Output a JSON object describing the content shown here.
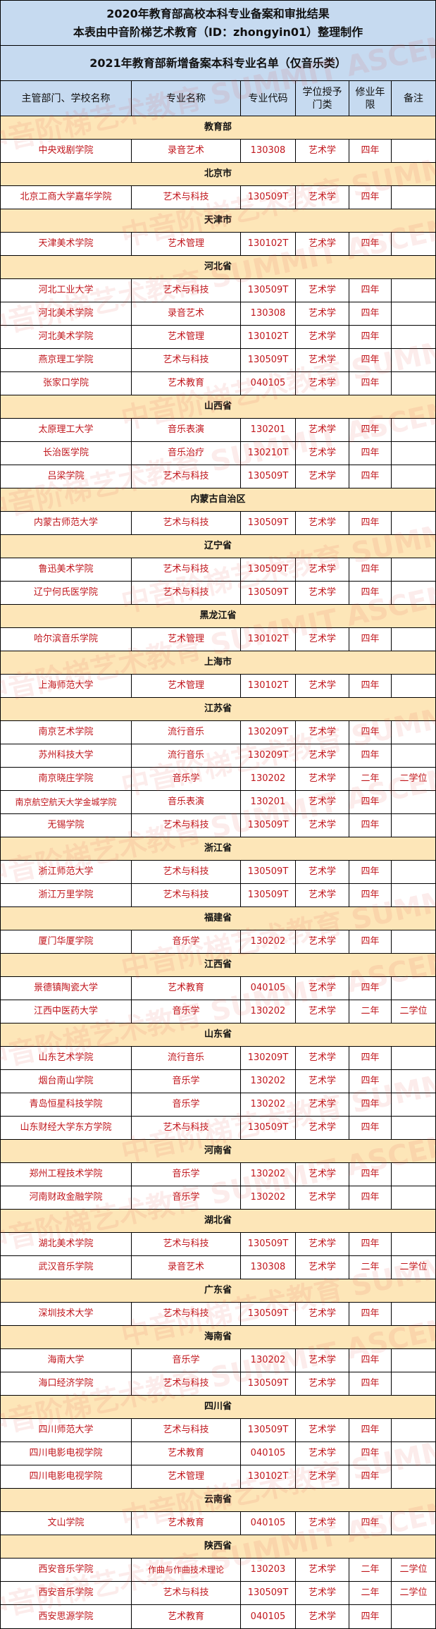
{
  "header": {
    "title_line1": "2020年教育部高校本科专业备案和审批结果",
    "title_line2": "本表由中音阶梯艺术教育（ID：zhongyin01）整理制作",
    "subtitle": "2021年教育部新增备案本科专业名单（仅音乐类）"
  },
  "columns": [
    "主管部门、学校名称",
    "专业名称",
    "专业代码",
    "学位授予门类",
    "修业年限",
    "备注"
  ],
  "watermark": "中音阶梯艺术教育 SUMMIT ASCENT INSTITUTE OF MUSIC",
  "colors": {
    "header_bg": "#c6daf0",
    "province_bg": "#fde6b8",
    "data_text": "#c0161c"
  },
  "groups": [
    {
      "province": "教育部",
      "rows": [
        [
          "中央戏剧学院",
          "录音艺术",
          "130308",
          "艺术学",
          "四年",
          ""
        ]
      ]
    },
    {
      "province": "北京市",
      "rows": [
        [
          "北京工商大学嘉华学院",
          "艺术与科技",
          "130509T",
          "艺术学",
          "四年",
          ""
        ]
      ]
    },
    {
      "province": "天津市",
      "rows": [
        [
          "天津美术学院",
          "艺术管理",
          "130102T",
          "艺术学",
          "四年",
          ""
        ]
      ]
    },
    {
      "province": "河北省",
      "rows": [
        [
          "河北工业大学",
          "艺术与科技",
          "130509T",
          "艺术学",
          "四年",
          ""
        ],
        [
          "河北美术学院",
          "录音艺术",
          "130308",
          "艺术学",
          "四年",
          ""
        ],
        [
          "河北美术学院",
          "艺术管理",
          "130102T",
          "艺术学",
          "四年",
          ""
        ],
        [
          "燕京理工学院",
          "艺术与科技",
          "130509T",
          "艺术学",
          "四年",
          ""
        ],
        [
          "张家口学院",
          "艺术教育",
          "040105",
          "艺术学",
          "四年",
          ""
        ]
      ]
    },
    {
      "province": "山西省",
      "rows": [
        [
          "太原理工大学",
          "音乐表演",
          "130201",
          "艺术学",
          "四年",
          ""
        ],
        [
          "长治医学院",
          "音乐治疗",
          "130210T",
          "艺术学",
          "四年",
          ""
        ],
        [
          "吕梁学院",
          "艺术与科技",
          "130509T",
          "艺术学",
          "四年",
          ""
        ]
      ]
    },
    {
      "province": "内蒙古自治区",
      "rows": [
        [
          "内蒙古师范大学",
          "艺术与科技",
          "130509T",
          "艺术学",
          "四年",
          ""
        ]
      ]
    },
    {
      "province": "辽宁省",
      "rows": [
        [
          "鲁迅美术学院",
          "艺术与科技",
          "130509T",
          "艺术学",
          "四年",
          ""
        ],
        [
          "辽宁何氏医学院",
          "艺术与科技",
          "130509T",
          "艺术学",
          "四年",
          ""
        ]
      ]
    },
    {
      "province": "黑龙江省",
      "rows": [
        [
          "哈尔滨音乐学院",
          "艺术管理",
          "130102T",
          "艺术学",
          "四年",
          ""
        ]
      ]
    },
    {
      "province": "上海市",
      "rows": [
        [
          "上海师范大学",
          "艺术管理",
          "130102T",
          "艺术学",
          "四年",
          ""
        ]
      ]
    },
    {
      "province": "江苏省",
      "rows": [
        [
          "南京艺术学院",
          "流行音乐",
          "130209T",
          "艺术学",
          "四年",
          ""
        ],
        [
          "苏州科技大学",
          "流行音乐",
          "130209T",
          "艺术学",
          "四年",
          ""
        ],
        [
          "南京晓庄学院",
          "音乐学",
          "130202",
          "艺术学",
          "二年",
          "二学位"
        ],
        [
          "南京航空航天大学金城学院",
          "音乐表演",
          "130201",
          "艺术学",
          "四年",
          ""
        ],
        [
          "无锡学院",
          "艺术与科技",
          "130509T",
          "艺术学",
          "四年",
          ""
        ]
      ]
    },
    {
      "province": "浙江省",
      "rows": [
        [
          "浙江师范大学",
          "艺术与科技",
          "130509T",
          "艺术学",
          "四年",
          ""
        ],
        [
          "浙江万里学院",
          "艺术与科技",
          "130509T",
          "艺术学",
          "四年",
          ""
        ]
      ]
    },
    {
      "province": "福建省",
      "rows": [
        [
          "厦门华厦学院",
          "音乐学",
          "130202",
          "艺术学",
          "四年",
          ""
        ]
      ]
    },
    {
      "province": "江西省",
      "rows": [
        [
          "景德镇陶瓷大学",
          "艺术教育",
          "040105",
          "艺术学",
          "四年",
          ""
        ],
        [
          "江西中医药大学",
          "音乐学",
          "130202",
          "艺术学",
          "二年",
          "二学位"
        ]
      ]
    },
    {
      "province": "山东省",
      "rows": [
        [
          "山东艺术学院",
          "流行音乐",
          "130209T",
          "艺术学",
          "四年",
          ""
        ],
        [
          "烟台南山学院",
          "音乐学",
          "130202",
          "艺术学",
          "四年",
          ""
        ],
        [
          "青岛恒星科技学院",
          "音乐学",
          "130202",
          "艺术学",
          "四年",
          ""
        ],
        [
          "山东财经大学东方学院",
          "艺术与科技",
          "130509T",
          "艺术学",
          "四年",
          ""
        ]
      ]
    },
    {
      "province": "河南省",
      "rows": [
        [
          "郑州工程技术学院",
          "音乐学",
          "130202",
          "艺术学",
          "四年",
          ""
        ],
        [
          "河南财政金融学院",
          "音乐学",
          "130202",
          "艺术学",
          "四年",
          ""
        ]
      ]
    },
    {
      "province": "湖北省",
      "rows": [
        [
          "湖北美术学院",
          "艺术与科技",
          "130509T",
          "艺术学",
          "四年",
          ""
        ],
        [
          "武汉音乐学院",
          "录音艺术",
          "130308",
          "艺术学",
          "二年",
          "二学位"
        ]
      ]
    },
    {
      "province": "广东省",
      "rows": [
        [
          "深圳技术大学",
          "艺术与科技",
          "130509T",
          "艺术学",
          "四年",
          ""
        ]
      ]
    },
    {
      "province": "海南省",
      "rows": [
        [
          "海南大学",
          "音乐学",
          "130202",
          "艺术学",
          "四年",
          ""
        ],
        [
          "海口经济学院",
          "艺术与科技",
          "130509T",
          "艺术学",
          "四年",
          ""
        ]
      ]
    },
    {
      "province": "四川省",
      "rows": [
        [
          "四川师范大学",
          "艺术与科技",
          "130509T",
          "艺术学",
          "四年",
          ""
        ],
        [
          "四川电影电视学院",
          "艺术教育",
          "040105",
          "艺术学",
          "四年",
          ""
        ],
        [
          "四川电影电视学院",
          "艺术管理",
          "130102T",
          "艺术学",
          "四年",
          ""
        ]
      ]
    },
    {
      "province": "云南省",
      "rows": [
        [
          "文山学院",
          "艺术教育",
          "040105",
          "艺术学",
          "四年",
          ""
        ]
      ]
    },
    {
      "province": "陕西省",
      "rows": [
        [
          "西安音乐学院",
          "作曲与作曲技术理论",
          "130203",
          "艺术学",
          "二年",
          "二学位"
        ],
        [
          "西安音乐学院",
          "艺术与科技",
          "130509T",
          "艺术学",
          "二年",
          "二学位"
        ],
        [
          "西安思源学院",
          "艺术教育",
          "040105",
          "艺术学",
          "四年",
          ""
        ]
      ]
    }
  ]
}
